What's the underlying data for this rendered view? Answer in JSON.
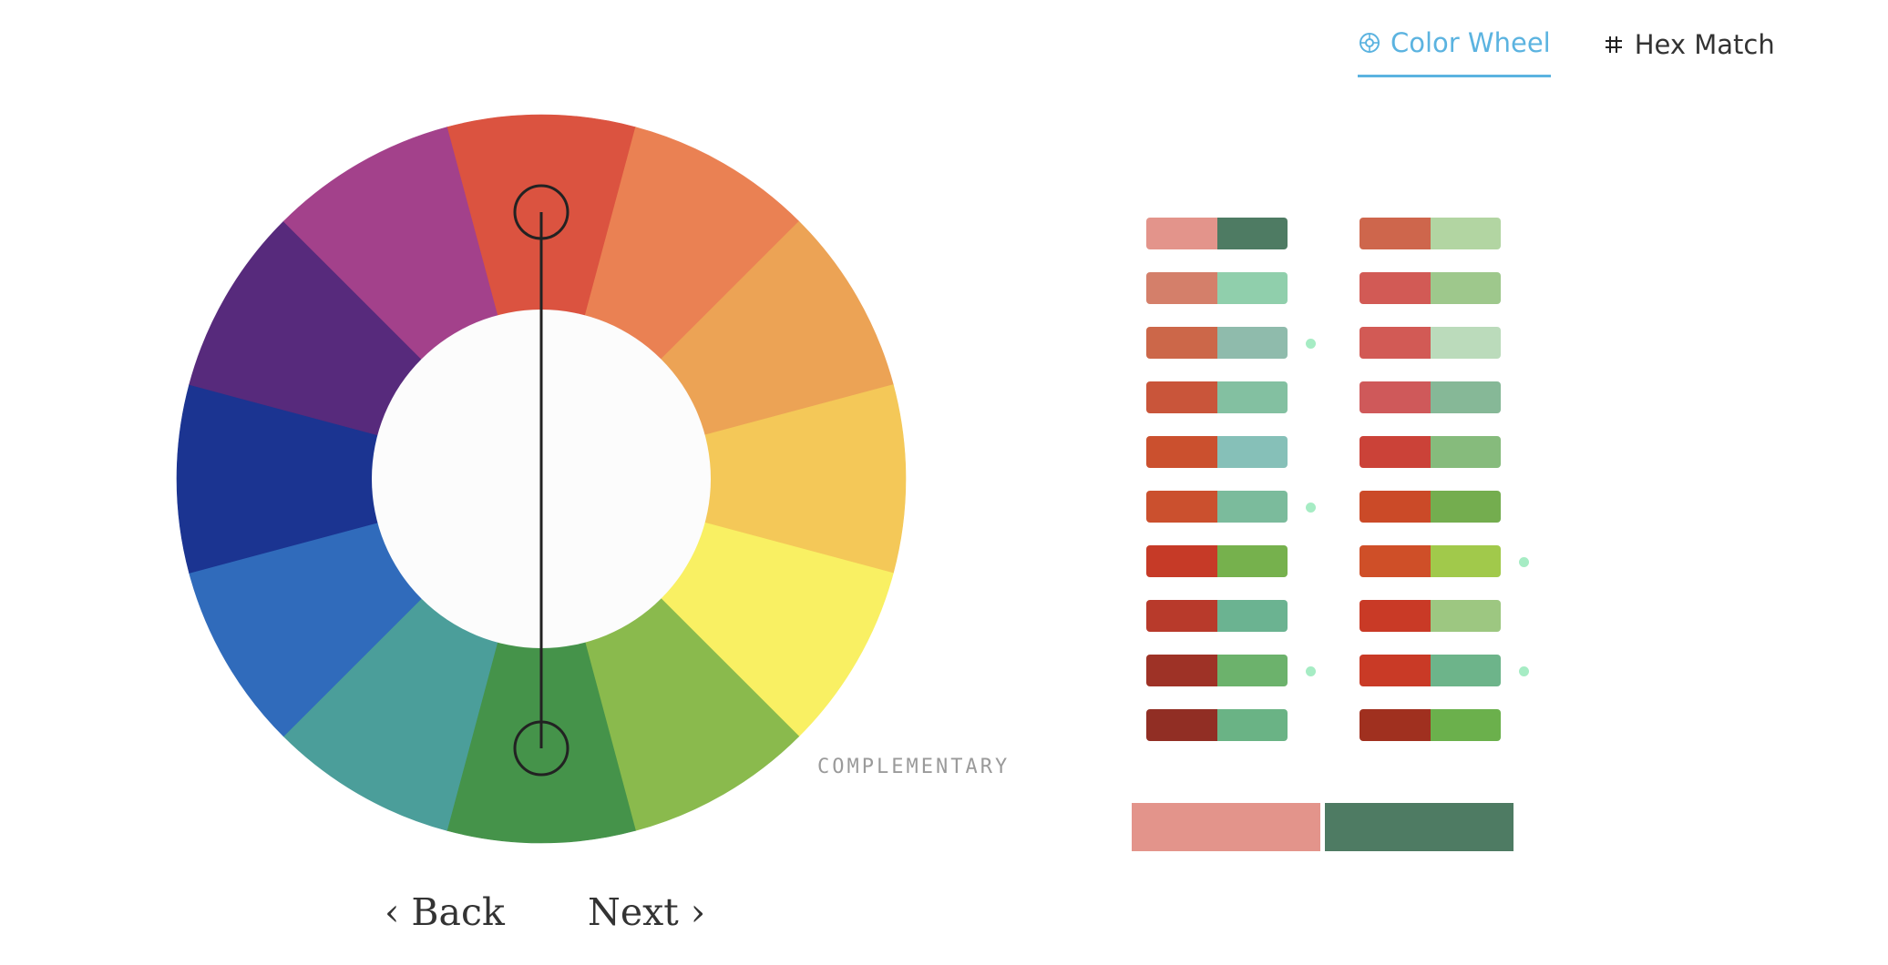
{
  "tabs": [
    {
      "label": "Color Wheel",
      "active": true,
      "icon": "color-wheel-icon"
    },
    {
      "label": "Hex Match",
      "active": false,
      "icon": "hash-icon"
    }
  ],
  "wheel": {
    "segments": [
      "#db5340",
      "#ea8153",
      "#eca355",
      "#f4c858",
      "#f9f063",
      "#8aba4d",
      "#45934a",
      "#4b9e9a",
      "#306bbb",
      "#1b3491",
      "#572a7c",
      "#a3418b"
    ],
    "center_color": "#fcfcfc",
    "connector_color": "#222222"
  },
  "scheme_label": "COMPLEMENTARY",
  "nav": {
    "back_label": "‹ Back",
    "next_label": "Next ›"
  },
  "palettes": {
    "column1": [
      {
        "left": "#e3948b",
        "right": "#4e7b63",
        "dot": false
      },
      {
        "left": "#d47f6a",
        "right": "#90cfac",
        "dot": false
      },
      {
        "left": "#cc6749",
        "right": "#8fbbac",
        "dot": true
      },
      {
        "left": "#c9553a",
        "right": "#83c0a1",
        "dot": false
      },
      {
        "left": "#cb502e",
        "right": "#86c0b8",
        "dot": false
      },
      {
        "left": "#cb502e",
        "right": "#7bbb9c",
        "dot": true
      },
      {
        "left": "#c63a27",
        "right": "#76b14d",
        "dot": false
      },
      {
        "left": "#b83a2b",
        "right": "#6bb391",
        "dot": false
      },
      {
        "left": "#9e3226",
        "right": "#6cb26c",
        "dot": true
      },
      {
        "left": "#912e24",
        "right": "#6ab385",
        "dot": false
      }
    ],
    "column2": [
      {
        "left": "#ce664c",
        "right": "#b2d5a2",
        "dot": false
      },
      {
        "left": "#d25a55",
        "right": "#9ec88c",
        "dot": false
      },
      {
        "left": "#d25a55",
        "right": "#bbdbbb",
        "dot": false
      },
      {
        "left": "#cf595a",
        "right": "#86b897",
        "dot": false
      },
      {
        "left": "#cb4238",
        "right": "#86bb7c",
        "dot": false
      },
      {
        "left": "#cb4a28",
        "right": "#74ad4f",
        "dot": false
      },
      {
        "left": "#cf4f28",
        "right": "#a1c94b",
        "dot": true
      },
      {
        "left": "#c93a26",
        "right": "#9dc781",
        "dot": false
      },
      {
        "left": "#c93a26",
        "right": "#6db48a",
        "dot": true
      },
      {
        "left": "#a0301f",
        "right": "#6bb04c",
        "dot": false
      }
    ]
  },
  "preview": {
    "left": "#e3948b",
    "right": "#4e7b63"
  }
}
